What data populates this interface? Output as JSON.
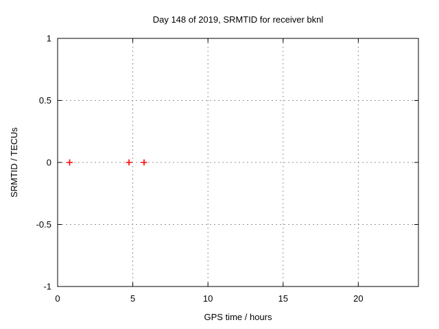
{
  "page": {
    "background": "#ffffff"
  },
  "chart_data": {
    "type": "scatter",
    "title": "Day 148 of 2019, SRMTID for receiver bknl",
    "xlabel": "GPS time / hours",
    "ylabel": "SRMTID / TECUs",
    "xlim": [
      0,
      24
    ],
    "ylim": [
      -1,
      1
    ],
    "xticks": [
      0,
      5,
      10,
      15,
      20
    ],
    "yticks": [
      -1,
      -0.5,
      0,
      0.5,
      1
    ],
    "grid": true,
    "legend": "none",
    "series": [
      {
        "name": "SRMTID",
        "marker": "plus",
        "color": "#ff0000",
        "points": [
          [
            0.8,
            0
          ],
          [
            4.75,
            0
          ],
          [
            5.75,
            0
          ]
        ]
      }
    ],
    "styles": {
      "grid_color": "#949494",
      "grid_dash": "2,4",
      "axis_color": "#000000",
      "text_color": "#000000",
      "tick_length": 6,
      "marker_half_size": 4.5,
      "marker_stroke_width": 1.6
    }
  }
}
